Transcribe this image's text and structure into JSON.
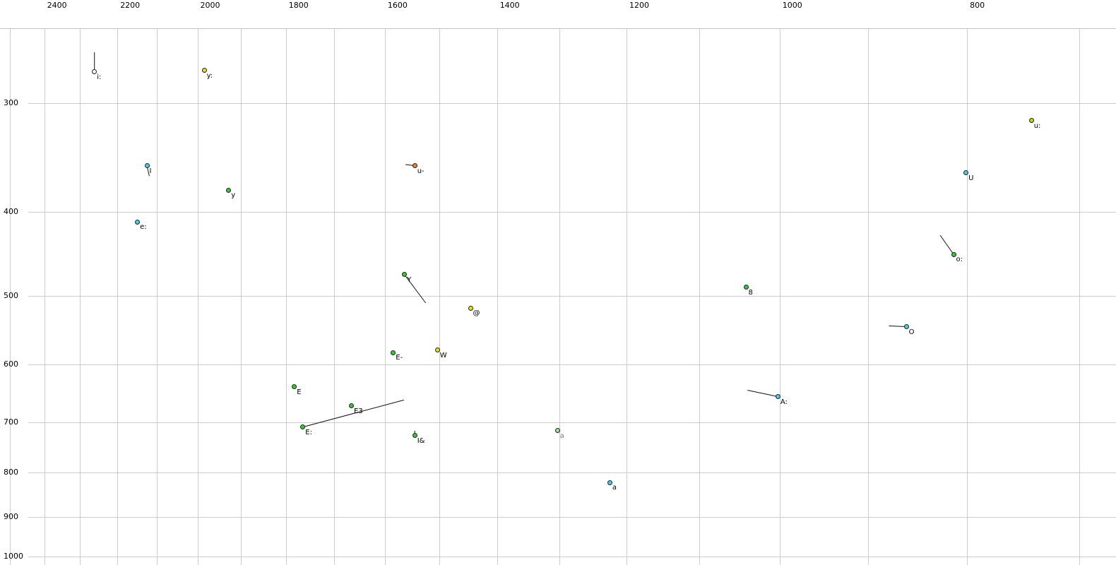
{
  "chart_data": {
    "type": "scatter",
    "title": "",
    "xlabel": "",
    "ylabel": "",
    "grid": true,
    "x_axis": {
      "scale": "log",
      "reversed": true,
      "position": "top",
      "lim": [
        2530,
        670
      ],
      "ticks": [
        2400,
        2200,
        2000,
        1800,
        1600,
        1400,
        1200,
        1000,
        800
      ],
      "gridlines": [
        2500,
        2400,
        2300,
        2200,
        2100,
        2000,
        1900,
        1800,
        1700,
        1600,
        1500,
        1400,
        1300,
        1200,
        1100,
        1000,
        900,
        800,
        700
      ]
    },
    "y_axis": {
      "scale": "log",
      "position": "left",
      "lim": [
        228,
        1023
      ],
      "ticks": [
        300,
        400,
        500,
        600,
        700,
        800,
        900,
        1000
      ]
    },
    "points": [
      {
        "label": "i:",
        "f2": 2261,
        "f1": 276,
        "fill": "#f4f4ff",
        "tail": {
          "f2": 2261,
          "f1": 262
        }
      },
      {
        "label": "y:",
        "f2": 1984,
        "f1": 275,
        "fill": "#e8e400"
      },
      {
        "label": "u:",
        "f2": 741,
        "f1": 314,
        "fill": "#b4dc00"
      },
      {
        "label": "I",
        "f2": 2124,
        "f1": 354,
        "fill": "#45d0e6",
        "tail": {
          "f2": 2118,
          "f1": 364
        }
      },
      {
        "label": "u-",
        "f2": 1544,
        "f1": 354,
        "fill": "#f08428",
        "tail": {
          "f2": 1561,
          "f1": 353
        }
      },
      {
        "label": "U",
        "f2": 801,
        "f1": 361,
        "fill": "#45d0e6"
      },
      {
        "label": "y",
        "f2": 1927,
        "f1": 378,
        "fill": "#33cc33"
      },
      {
        "label": "e:",
        "f2": 2148,
        "f1": 411,
        "fill": "#45d0e6"
      },
      {
        "label": "o:",
        "f2": 813,
        "f1": 448,
        "fill": "#33cc33",
        "tail": {
          "f2": 826,
          "f1": 426
        }
      },
      {
        "label": "Y",
        "f2": 1563,
        "f1": 473,
        "fill": "#33cc33",
        "tail": {
          "f2": 1524,
          "f1": 510
        }
      },
      {
        "label": "8",
        "f2": 1041,
        "f1": 489,
        "fill": "#33cc33"
      },
      {
        "label": "@",
        "f2": 1445,
        "f1": 517,
        "fill": "#e8e400"
      },
      {
        "label": "O",
        "f2": 860,
        "f1": 543,
        "fill": "#45d0e6",
        "tail": {
          "f2": 878,
          "f1": 542
        }
      },
      {
        "label": "E-",
        "f2": 1584,
        "f1": 582,
        "fill": "#33cc33"
      },
      {
        "label": "W",
        "f2": 1503,
        "f1": 578,
        "fill": "#e8e400"
      },
      {
        "label": "E",
        "f2": 1782,
        "f1": 637,
        "fill": "#33cc33"
      },
      {
        "label": "A:",
        "f2": 1002,
        "f1": 654,
        "fill": "#45d0e6",
        "tail": {
          "f2": 1039,
          "f1": 643
        }
      },
      {
        "label": "E3",
        "f2": 1665,
        "f1": 670,
        "fill": "#33cc33"
      },
      {
        "label": "E:",
        "f2": 1764,
        "f1": 709,
        "fill": "#33cc33",
        "tail": {
          "f2": 1564,
          "f1": 660
        }
      },
      {
        "label": "I&",
        "f2": 1544,
        "f1": 725,
        "fill": "#33cc33",
        "tail": {
          "f2": 1544,
          "f1": 716
        }
      },
      {
        "label": "a",
        "f2": 1303,
        "f1": 716,
        "fill": "#a0e0a0",
        "label_color": "#7a7a7a"
      },
      {
        "label": "a",
        "f2": 1224,
        "f1": 822,
        "fill": "#45d0e6"
      }
    ],
    "colors": {
      "grid": "#cccccc",
      "point_outline": "#222222",
      "trajectory_line": "#111111",
      "text": "#000000"
    }
  }
}
